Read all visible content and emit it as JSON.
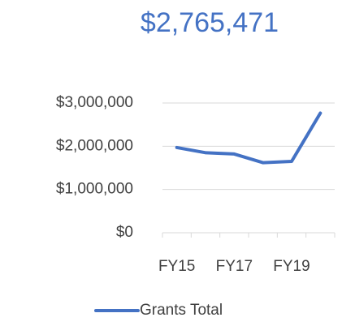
{
  "chart_data": {
    "type": "line",
    "title": "$2,765,471",
    "categories": [
      "FY15",
      null,
      "FY17",
      null,
      "FY19",
      null
    ],
    "series": [
      {
        "name": "Grants Total",
        "color": "#4472c4",
        "values": [
          1970000,
          1850000,
          1820000,
          1620000,
          1650000,
          2765471
        ]
      }
    ],
    "ylim": [
      0,
      3000000
    ],
    "yticks": [
      {
        "value": 0,
        "label": "$0"
      },
      {
        "value": 1000000,
        "label": "$1,000,000"
      },
      {
        "value": 2000000,
        "label": "$2,000,000"
      },
      {
        "value": 3000000,
        "label": "$3,000,000"
      }
    ],
    "grid": true,
    "legend": "bottom"
  }
}
